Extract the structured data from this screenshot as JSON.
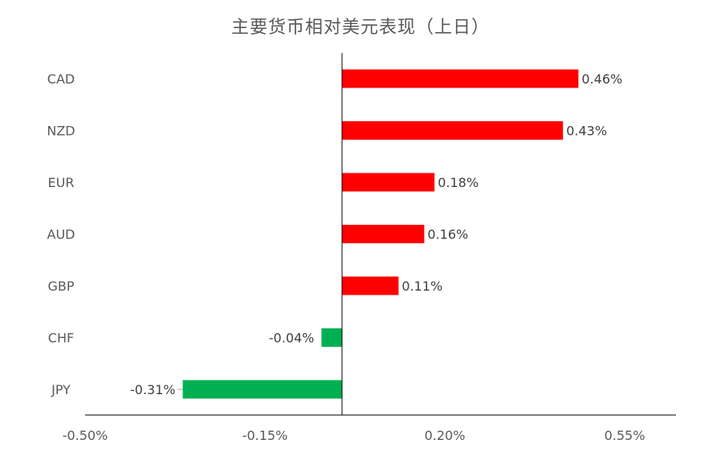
{
  "chart_data": {
    "type": "bar",
    "orientation": "horizontal",
    "title": "主要货币相对美元表现（上日）",
    "categories": [
      "CAD",
      "NZD",
      "EUR",
      "AUD",
      "GBP",
      "CHF",
      "JPY"
    ],
    "values": [
      0.46,
      0.43,
      0.18,
      0.16,
      0.11,
      -0.04,
      -0.31
    ],
    "value_labels": [
      "0.46%",
      "0.43%",
      "0.18%",
      "0.16%",
      "0.11%",
      "-0.04%",
      "-0.31%"
    ],
    "xlim": [
      -0.5,
      0.65
    ],
    "x_ticks": [
      -0.5,
      -0.15,
      0.2,
      0.55
    ],
    "x_tick_labels": [
      "-0.50%",
      "-0.15%",
      "0.20%",
      "0.55%"
    ],
    "colors": {
      "positive": "#ff0000",
      "negative": "#00b050",
      "axis": "#000000",
      "text": "#595959"
    },
    "grid": false,
    "legend": "none"
  }
}
